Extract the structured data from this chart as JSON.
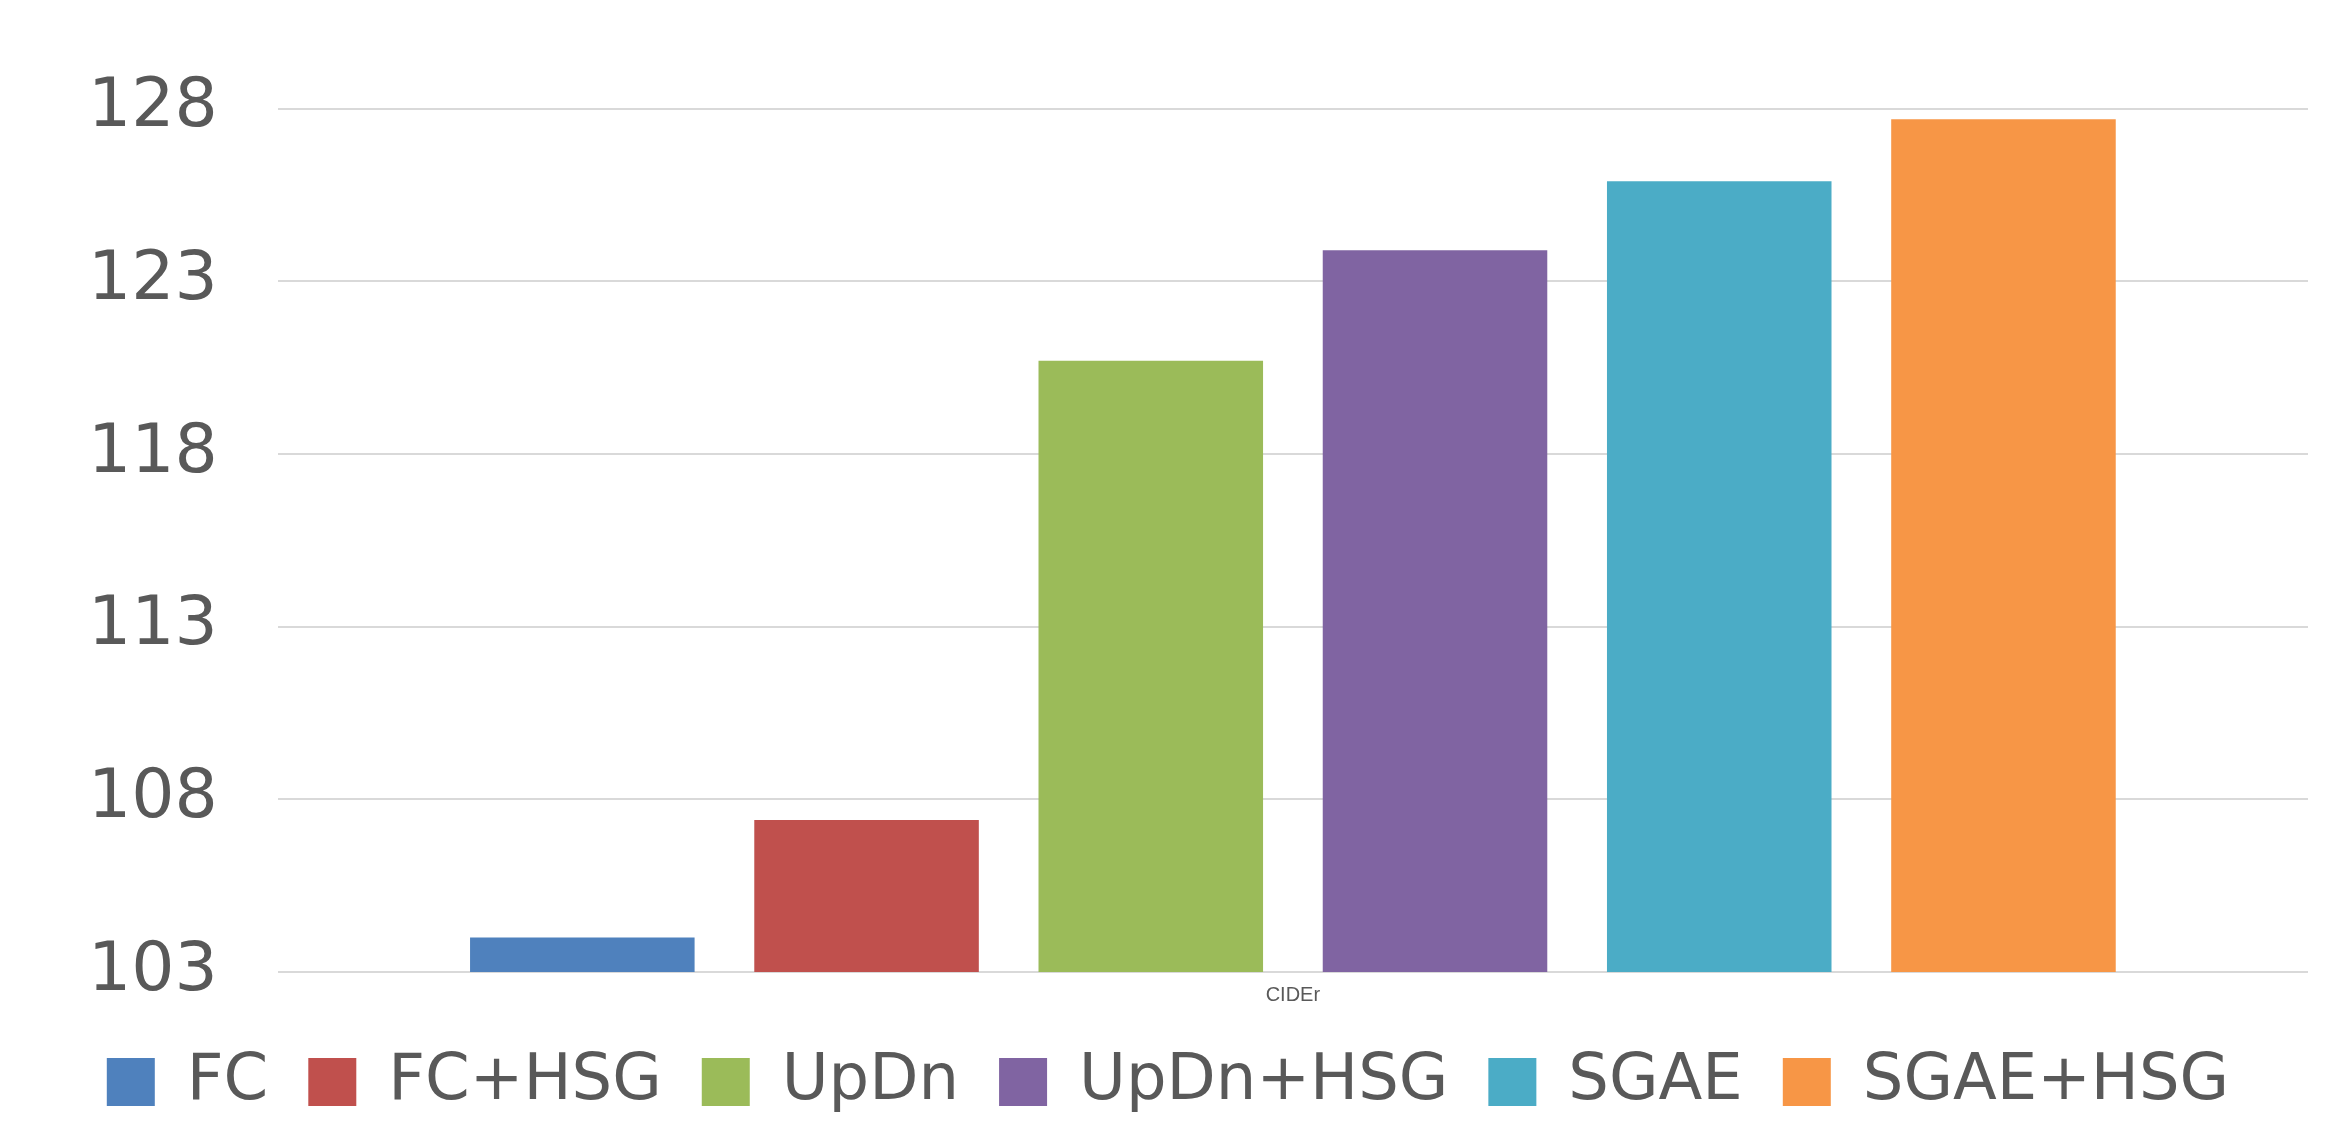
{
  "chart_data": {
    "type": "bar",
    "categories": [
      "CIDEr"
    ],
    "series": [
      {
        "name": "FC",
        "color": "#4f81bd",
        "values": [
          104.0
        ]
      },
      {
        "name": "FC+HSG",
        "color": "#c0504d",
        "values": [
          107.4
        ]
      },
      {
        "name": "UpDn",
        "color": "#9bbb59",
        "values": [
          120.7
        ]
      },
      {
        "name": "UpDn+HSG",
        "color": "#8064a2",
        "values": [
          123.9
        ]
      },
      {
        "name": "SGAE",
        "color": "#4bacc6",
        "values": [
          125.9
        ]
      },
      {
        "name": "SGAE+HSG",
        "color": "#f79646",
        "values": [
          127.7
        ]
      }
    ],
    "ylim": [
      103,
      128
    ],
    "yticks": [
      103,
      108,
      113,
      118,
      123,
      128
    ],
    "grid": "y",
    "legend": "bottom"
  }
}
